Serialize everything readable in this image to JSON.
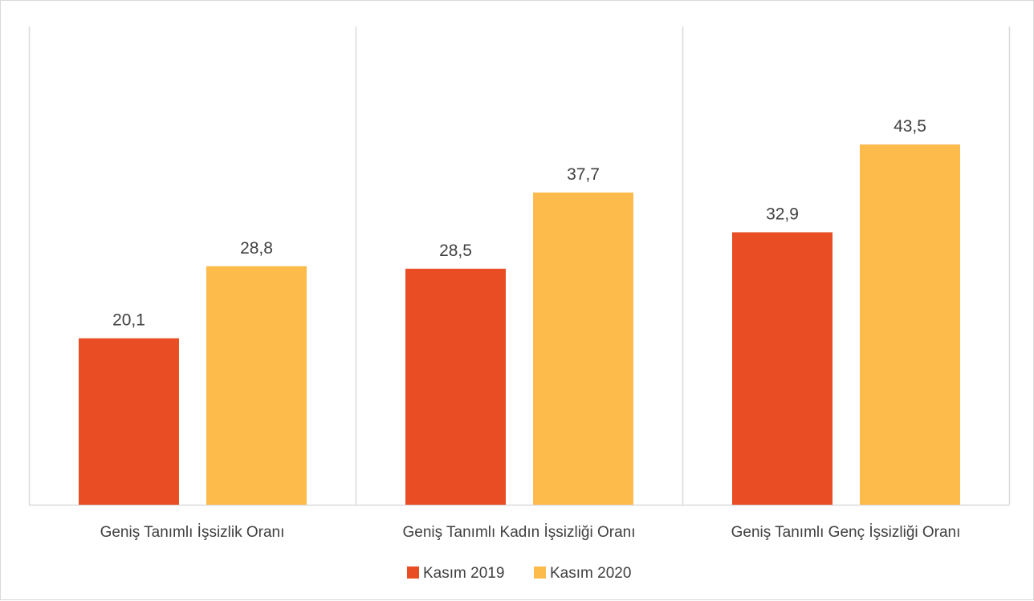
{
  "chart_data": {
    "type": "bar",
    "categories": [
      "Geniş Tanımlı İşsizlik Oranı",
      "Geniş Tanımlı Kadın İşsizliği Oranı",
      "Geniş Tanımlı Genç İşsizliği Oranı"
    ],
    "series": [
      {
        "name": "Kasım 2019",
        "values": [
          20.1,
          28.5,
          32.9
        ],
        "color": "#E84D24",
        "labels": [
          "20,1",
          "28,5",
          "32,9"
        ]
      },
      {
        "name": "Kasım 2020",
        "values": [
          28.8,
          37.7,
          43.5
        ],
        "color": "#FDBB4B",
        "labels": [
          "28,8",
          "37,7",
          "43,5"
        ]
      }
    ],
    "title": "",
    "xlabel": "",
    "ylabel": "",
    "ylim": [
      0,
      50
    ],
    "grid": false,
    "category_separators": true,
    "legend": "bottom"
  }
}
